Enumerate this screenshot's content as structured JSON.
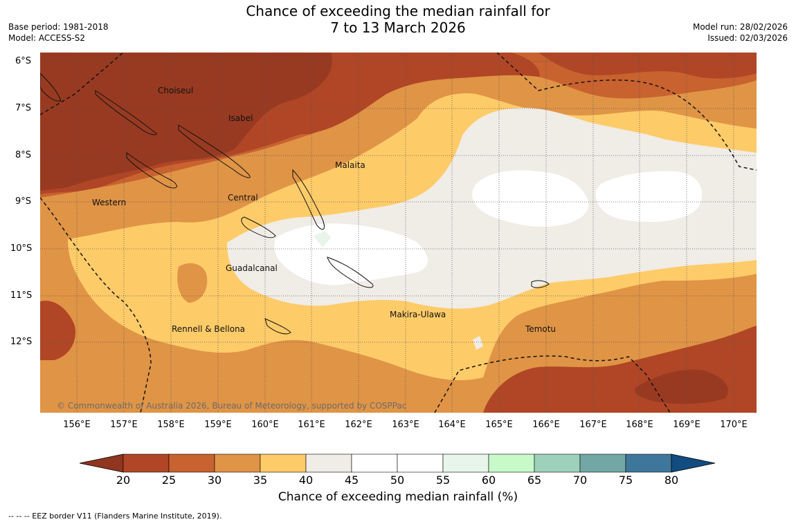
{
  "title_line1": "Chance of exceeding the median rainfall for",
  "title_line2": "7 to 13 March 2026",
  "base_period": "Base period: 1981-2018",
  "model": "Model: ACCESS-S2",
  "model_run": "Model run: 28/02/2026",
  "issued": "Issued: 02/03/2026",
  "copyright": "© Commonwealth of Australia 2026, Bureau of Meteorology, supported by COSPPac",
  "lat_labels": [
    "6°S",
    "7°S",
    "8°S",
    "9°S",
    "10°S",
    "11°S",
    "12°S"
  ],
  "lon_labels": [
    "156°E",
    "157°E",
    "158°E",
    "159°E",
    "160°E",
    "161°E",
    "162°E",
    "163°E",
    "164°E",
    "165°E",
    "166°E",
    "167°E",
    "168°E",
    "169°E",
    "170°E"
  ],
  "places": {
    "choiseul": "Choiseul",
    "isabel": "Isabel",
    "malaita": "Malaita",
    "western": "Western",
    "central": "Central",
    "guadalcanal": "Guadalcanal",
    "makira": "Makira-Ulawa",
    "rennell": "Rennell & Bellona",
    "temotu": "Temotu"
  },
  "colorbar": {
    "title": "Chance of exceeding median rainfall (%)",
    "ticks": [
      "20",
      "25",
      "30",
      "35",
      "40",
      "45",
      "50",
      "55",
      "60",
      "65",
      "70",
      "75",
      "80"
    ],
    "colors": [
      "#8f3520",
      "#b04626",
      "#c8622f",
      "#e09446",
      "#fecb69",
      "#f0ece6",
      "#ffffff",
      "#ffffff",
      "#e8f5ea",
      "#c8fac9",
      "#9ed1bc",
      "#72a7a6",
      "#3e779b",
      "#124c80"
    ]
  },
  "footer": "-- -- -- EEZ border V11 (Flanders Marine Institute, 2019)."
}
